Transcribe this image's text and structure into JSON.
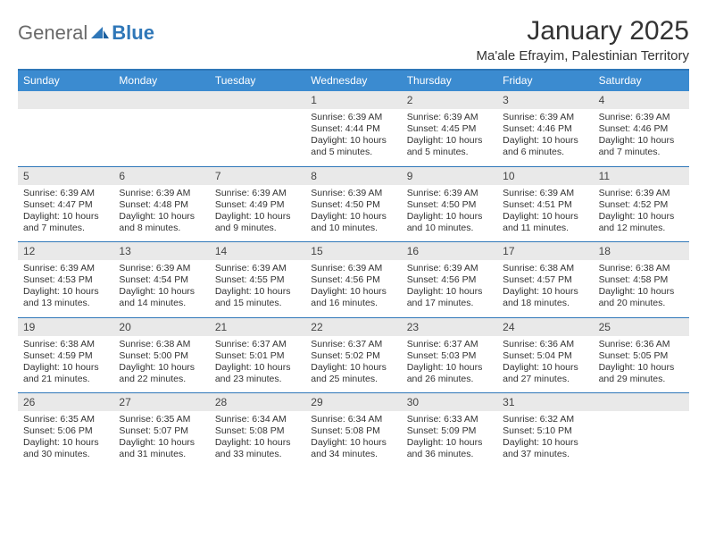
{
  "brand": {
    "part1": "General",
    "part2": "Blue"
  },
  "title": "January 2025",
  "location": "Ma'ale Efrayim, Palestinian Territory",
  "colors": {
    "header_bg": "#3b8bd0",
    "border": "#2f77b8",
    "daynum_bg": "#e9e9e9",
    "text": "#333333"
  },
  "day_names": [
    "Sunday",
    "Monday",
    "Tuesday",
    "Wednesday",
    "Thursday",
    "Friday",
    "Saturday"
  ],
  "weeks": [
    [
      {
        "n": "",
        "sunrise": "",
        "sunset": "",
        "daylight": ""
      },
      {
        "n": "",
        "sunrise": "",
        "sunset": "",
        "daylight": ""
      },
      {
        "n": "",
        "sunrise": "",
        "sunset": "",
        "daylight": ""
      },
      {
        "n": "1",
        "sunrise": "Sunrise: 6:39 AM",
        "sunset": "Sunset: 4:44 PM",
        "daylight": "Daylight: 10 hours and 5 minutes."
      },
      {
        "n": "2",
        "sunrise": "Sunrise: 6:39 AM",
        "sunset": "Sunset: 4:45 PM",
        "daylight": "Daylight: 10 hours and 5 minutes."
      },
      {
        "n": "3",
        "sunrise": "Sunrise: 6:39 AM",
        "sunset": "Sunset: 4:46 PM",
        "daylight": "Daylight: 10 hours and 6 minutes."
      },
      {
        "n": "4",
        "sunrise": "Sunrise: 6:39 AM",
        "sunset": "Sunset: 4:46 PM",
        "daylight": "Daylight: 10 hours and 7 minutes."
      }
    ],
    [
      {
        "n": "5",
        "sunrise": "Sunrise: 6:39 AM",
        "sunset": "Sunset: 4:47 PM",
        "daylight": "Daylight: 10 hours and 7 minutes."
      },
      {
        "n": "6",
        "sunrise": "Sunrise: 6:39 AM",
        "sunset": "Sunset: 4:48 PM",
        "daylight": "Daylight: 10 hours and 8 minutes."
      },
      {
        "n": "7",
        "sunrise": "Sunrise: 6:39 AM",
        "sunset": "Sunset: 4:49 PM",
        "daylight": "Daylight: 10 hours and 9 minutes."
      },
      {
        "n": "8",
        "sunrise": "Sunrise: 6:39 AM",
        "sunset": "Sunset: 4:50 PM",
        "daylight": "Daylight: 10 hours and 10 minutes."
      },
      {
        "n": "9",
        "sunrise": "Sunrise: 6:39 AM",
        "sunset": "Sunset: 4:50 PM",
        "daylight": "Daylight: 10 hours and 10 minutes."
      },
      {
        "n": "10",
        "sunrise": "Sunrise: 6:39 AM",
        "sunset": "Sunset: 4:51 PM",
        "daylight": "Daylight: 10 hours and 11 minutes."
      },
      {
        "n": "11",
        "sunrise": "Sunrise: 6:39 AM",
        "sunset": "Sunset: 4:52 PM",
        "daylight": "Daylight: 10 hours and 12 minutes."
      }
    ],
    [
      {
        "n": "12",
        "sunrise": "Sunrise: 6:39 AM",
        "sunset": "Sunset: 4:53 PM",
        "daylight": "Daylight: 10 hours and 13 minutes."
      },
      {
        "n": "13",
        "sunrise": "Sunrise: 6:39 AM",
        "sunset": "Sunset: 4:54 PM",
        "daylight": "Daylight: 10 hours and 14 minutes."
      },
      {
        "n": "14",
        "sunrise": "Sunrise: 6:39 AM",
        "sunset": "Sunset: 4:55 PM",
        "daylight": "Daylight: 10 hours and 15 minutes."
      },
      {
        "n": "15",
        "sunrise": "Sunrise: 6:39 AM",
        "sunset": "Sunset: 4:56 PM",
        "daylight": "Daylight: 10 hours and 16 minutes."
      },
      {
        "n": "16",
        "sunrise": "Sunrise: 6:39 AM",
        "sunset": "Sunset: 4:56 PM",
        "daylight": "Daylight: 10 hours and 17 minutes."
      },
      {
        "n": "17",
        "sunrise": "Sunrise: 6:38 AM",
        "sunset": "Sunset: 4:57 PM",
        "daylight": "Daylight: 10 hours and 18 minutes."
      },
      {
        "n": "18",
        "sunrise": "Sunrise: 6:38 AM",
        "sunset": "Sunset: 4:58 PM",
        "daylight": "Daylight: 10 hours and 20 minutes."
      }
    ],
    [
      {
        "n": "19",
        "sunrise": "Sunrise: 6:38 AM",
        "sunset": "Sunset: 4:59 PM",
        "daylight": "Daylight: 10 hours and 21 minutes."
      },
      {
        "n": "20",
        "sunrise": "Sunrise: 6:38 AM",
        "sunset": "Sunset: 5:00 PM",
        "daylight": "Daylight: 10 hours and 22 minutes."
      },
      {
        "n": "21",
        "sunrise": "Sunrise: 6:37 AM",
        "sunset": "Sunset: 5:01 PM",
        "daylight": "Daylight: 10 hours and 23 minutes."
      },
      {
        "n": "22",
        "sunrise": "Sunrise: 6:37 AM",
        "sunset": "Sunset: 5:02 PM",
        "daylight": "Daylight: 10 hours and 25 minutes."
      },
      {
        "n": "23",
        "sunrise": "Sunrise: 6:37 AM",
        "sunset": "Sunset: 5:03 PM",
        "daylight": "Daylight: 10 hours and 26 minutes."
      },
      {
        "n": "24",
        "sunrise": "Sunrise: 6:36 AM",
        "sunset": "Sunset: 5:04 PM",
        "daylight": "Daylight: 10 hours and 27 minutes."
      },
      {
        "n": "25",
        "sunrise": "Sunrise: 6:36 AM",
        "sunset": "Sunset: 5:05 PM",
        "daylight": "Daylight: 10 hours and 29 minutes."
      }
    ],
    [
      {
        "n": "26",
        "sunrise": "Sunrise: 6:35 AM",
        "sunset": "Sunset: 5:06 PM",
        "daylight": "Daylight: 10 hours and 30 minutes."
      },
      {
        "n": "27",
        "sunrise": "Sunrise: 6:35 AM",
        "sunset": "Sunset: 5:07 PM",
        "daylight": "Daylight: 10 hours and 31 minutes."
      },
      {
        "n": "28",
        "sunrise": "Sunrise: 6:34 AM",
        "sunset": "Sunset: 5:08 PM",
        "daylight": "Daylight: 10 hours and 33 minutes."
      },
      {
        "n": "29",
        "sunrise": "Sunrise: 6:34 AM",
        "sunset": "Sunset: 5:08 PM",
        "daylight": "Daylight: 10 hours and 34 minutes."
      },
      {
        "n": "30",
        "sunrise": "Sunrise: 6:33 AM",
        "sunset": "Sunset: 5:09 PM",
        "daylight": "Daylight: 10 hours and 36 minutes."
      },
      {
        "n": "31",
        "sunrise": "Sunrise: 6:32 AM",
        "sunset": "Sunset: 5:10 PM",
        "daylight": "Daylight: 10 hours and 37 minutes."
      },
      {
        "n": "",
        "sunrise": "",
        "sunset": "",
        "daylight": ""
      }
    ]
  ]
}
